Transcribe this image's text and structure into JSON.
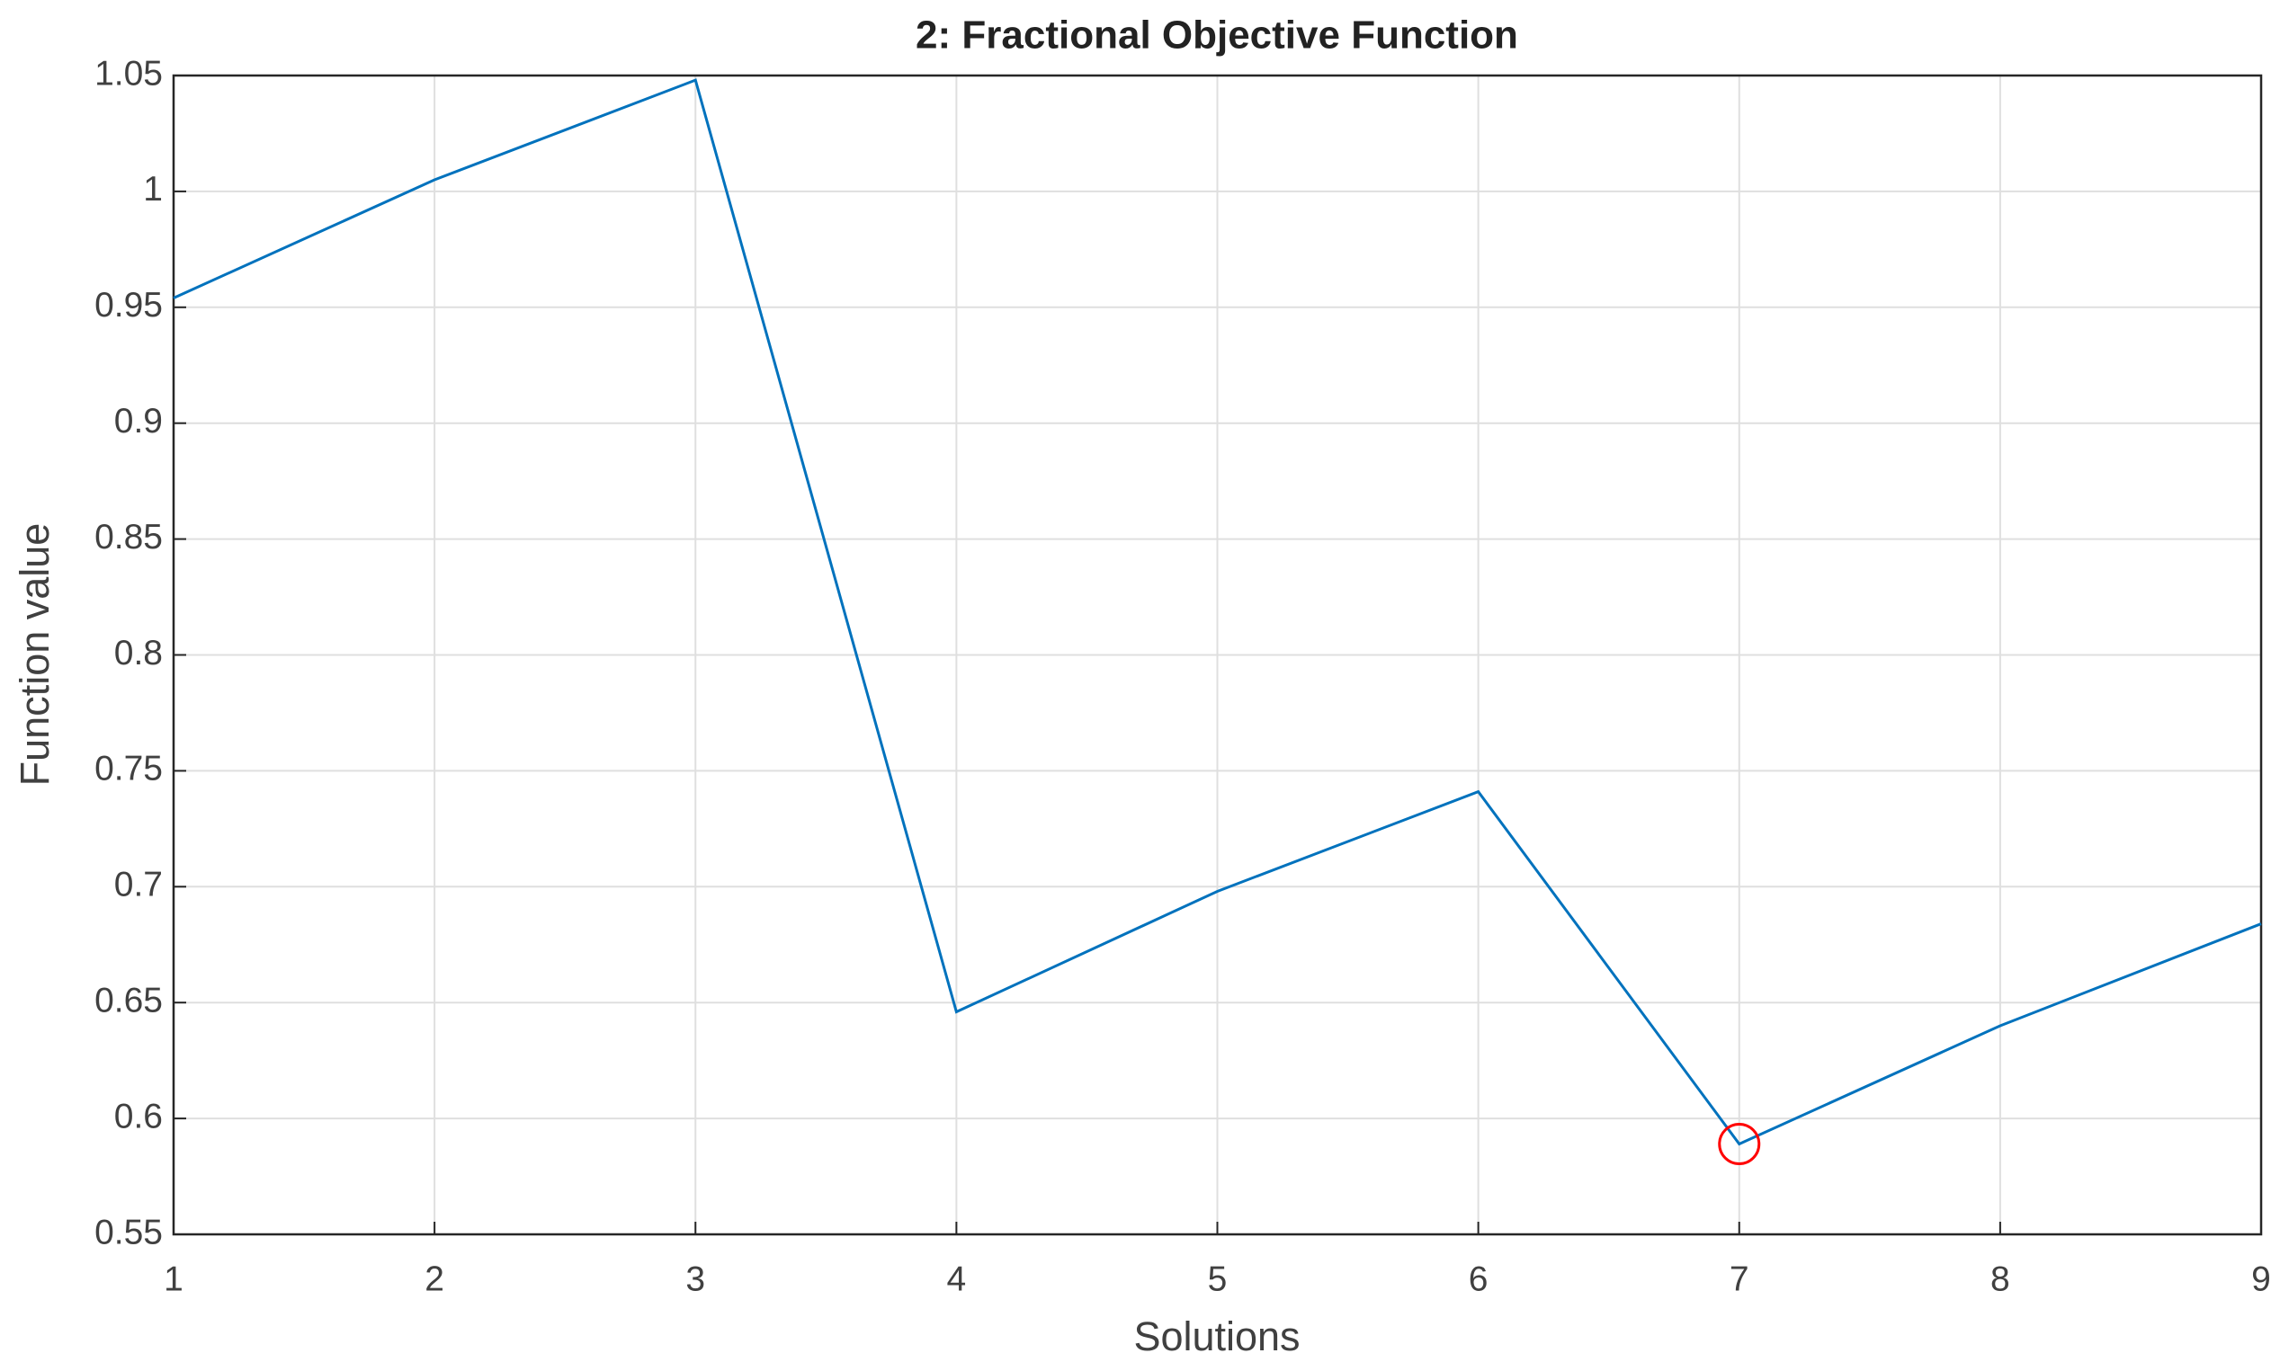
{
  "chart_data": {
    "type": "line",
    "title": "2: Fractional Objective Function",
    "xlabel": "Solutions",
    "ylabel": "Function value",
    "x": [
      1,
      2,
      3,
      4,
      5,
      6,
      7,
      8,
      9
    ],
    "series": [
      {
        "color": "#0072bd",
        "marker": "none",
        "values": [
          0.954,
          1.005,
          1.048,
          0.646,
          0.698,
          0.741,
          0.589,
          0.64,
          0.684
        ]
      },
      {
        "color": "#ff0000",
        "marker": "circle",
        "line": false,
        "values": [
          null,
          null,
          null,
          null,
          null,
          null,
          0.589,
          null,
          null
        ]
      }
    ],
    "xlim": [
      1,
      9
    ],
    "xticks": [
      1,
      2,
      3,
      4,
      5,
      6,
      7,
      8,
      9
    ],
    "ylim": [
      0.55,
      1.05
    ],
    "yticks": [
      0.55,
      0.6,
      0.65,
      0.7,
      0.75,
      0.8,
      0.85,
      0.9,
      0.95,
      1,
      1.05
    ],
    "grid": true
  }
}
